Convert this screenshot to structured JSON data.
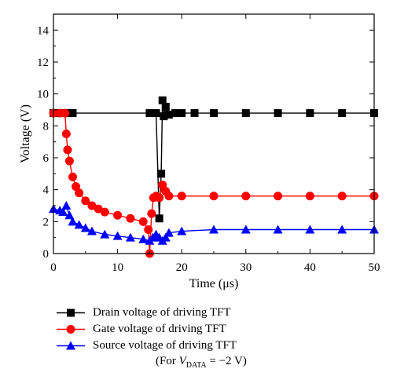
{
  "chart_data": {
    "type": "line",
    "xlabel": "Time (μs)",
    "ylabel": "Voltage (V)",
    "xlim": [
      0,
      50
    ],
    "ylim": [
      0,
      15
    ],
    "xticks": [
      0,
      10,
      20,
      30,
      40,
      50
    ],
    "yticks": [
      0,
      2,
      4,
      6,
      8,
      10,
      12,
      14
    ],
    "grid": false,
    "legend_position": "below",
    "note": {
      "prefix": "(For ",
      "var": "V",
      "sub": "DATA",
      "suffix": " = −2 V)"
    },
    "series": [
      {
        "name": "Drain voltage of driving TFT",
        "color": "#000000",
        "marker": "square",
        "x": [
          0,
          1,
          2,
          2.5,
          3,
          15,
          16,
          16.5,
          16.8,
          17,
          17.2,
          17.5,
          18,
          19,
          20,
          22,
          25,
          30,
          35,
          40,
          45,
          50
        ],
        "y": [
          8.8,
          8.8,
          8.8,
          8.8,
          8.8,
          8.8,
          8.8,
          2.2,
          5.0,
          9.6,
          8.6,
          9.2,
          8.7,
          8.8,
          8.8,
          8.8,
          8.8,
          8.8,
          8.8,
          8.8,
          8.8,
          8.8
        ]
      },
      {
        "name": "Gate voltage of driving TFT",
        "color": "#ff0000",
        "marker": "circle",
        "x": [
          0,
          1,
          1.8,
          2,
          2.2,
          2.5,
          3,
          3.5,
          4,
          5,
          6,
          7,
          8,
          10,
          12,
          14,
          14.8,
          15,
          15.3,
          15.6,
          16,
          16.5,
          17,
          17.5,
          18,
          20,
          25,
          30,
          35,
          40,
          45,
          50
        ],
        "y": [
          8.8,
          8.8,
          8.8,
          7.5,
          6.5,
          5.8,
          4.8,
          4.2,
          3.8,
          3.3,
          3.0,
          2.8,
          2.6,
          2.4,
          2.2,
          2.0,
          1.5,
          0,
          2.5,
          3.5,
          3.6,
          3.5,
          4.3,
          3.9,
          3.6,
          3.6,
          3.6,
          3.6,
          3.6,
          3.6,
          3.6,
          3.6
        ]
      },
      {
        "name": "Source voltage of driving TFT",
        "color": "#0000ff",
        "marker": "triangle",
        "x": [
          0,
          1,
          1.5,
          2,
          2.5,
          3,
          4,
          5,
          6,
          8,
          10,
          12,
          14,
          15,
          15.5,
          16,
          16.5,
          17,
          17.5,
          18,
          20,
          25,
          30,
          35,
          40,
          45,
          50
        ],
        "y": [
          2.8,
          2.7,
          2.6,
          3.0,
          2.4,
          2.0,
          1.8,
          1.6,
          1.4,
          1.2,
          1.1,
          1.0,
          0.9,
          0.8,
          1.0,
          1.2,
          1.0,
          0.8,
          1.0,
          1.3,
          1.4,
          1.5,
          1.5,
          1.5,
          1.5,
          1.5,
          1.5
        ]
      }
    ]
  }
}
